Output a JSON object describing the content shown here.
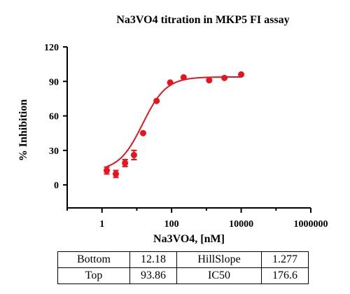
{
  "chart_data": {
    "type": "scatter",
    "title": "Na3VO4 titration in MKP5 FI assay",
    "xlabel": "Na3VO4,  [nM]",
    "ylabel": "% Inhibition",
    "xscale": "log",
    "xlim": [
      0.1,
      1000000
    ],
    "ylim": [
      -20,
      120
    ],
    "x_ticks": [
      1,
      100,
      10000,
      1000000
    ],
    "x_tick_labels": [
      "1",
      "100",
      "10000",
      "1000000"
    ],
    "y_ticks": [
      0,
      30,
      60,
      90,
      120
    ],
    "y_tick_labels": [
      "0",
      "30",
      "60",
      "90",
      "120"
    ],
    "grid": false,
    "series": [
      {
        "color": "#e8141c",
        "points": [
          {
            "x": 1.37,
            "y": 12.5,
            "err": 3
          },
          {
            "x": 2.5,
            "y": 9.5,
            "err": 3
          },
          {
            "x": 4.6,
            "y": 19,
            "err": 3
          },
          {
            "x": 8.3,
            "y": 26,
            "err": 4
          },
          {
            "x": 15.2,
            "y": 45
          },
          {
            "x": 37,
            "y": 73
          },
          {
            "x": 91,
            "y": 89
          },
          {
            "x": 222,
            "y": 93.5
          },
          {
            "x": 1200,
            "y": 91
          },
          {
            "x": 3300,
            "y": 93
          },
          {
            "x": 10000,
            "y": 96
          }
        ],
        "fit": {
          "model": "four-parameter logistic",
          "bottom": 12.18,
          "top": 93.86,
          "hillslope": 1.277,
          "ic50": 176.6
        }
      }
    ]
  },
  "params_table": {
    "rows": [
      [
        "Bottom",
        "12.18",
        "HillSlope",
        "1.277"
      ],
      [
        "Top",
        "93.86",
        "IC50",
        "176.6"
      ]
    ]
  }
}
